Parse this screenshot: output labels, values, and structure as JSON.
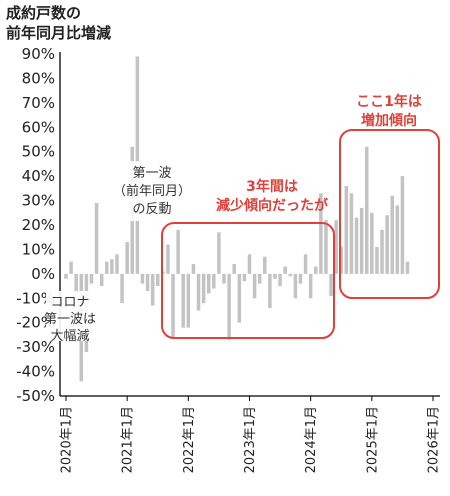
{
  "chart_data": {
    "type": "bar",
    "title_lines": [
      "成約戸数の",
      "前年同月比増減"
    ],
    "x_tick_labels": [
      "2020年1月",
      "2021年1月",
      "2022年1月",
      "2023年1月",
      "2024年1月",
      "2025年1月",
      "2026年1月"
    ],
    "y_tick_labels": [
      "-50%",
      "-40%",
      "-30%",
      "-20%",
      "-10%",
      "0%",
      "10%",
      "20%",
      "30%",
      "40%",
      "50%",
      "60%",
      "70%",
      "80%",
      "90%"
    ],
    "ylim": [
      -50,
      90
    ],
    "y_unit": "%",
    "grid": false,
    "colors": {
      "bar": "#c3c3c3",
      "axis": "#000000",
      "highlight": "#e0403a",
      "text": "#222222"
    },
    "series": [
      {
        "months": [
          "2020-01",
          "2020-02",
          "2020-03",
          "2020-04",
          "2020-05",
          "2020-06",
          "2020-07",
          "2020-08",
          "2020-09",
          "2020-10",
          "2020-11",
          "2020-12",
          "2021-01",
          "2021-02",
          "2021-03",
          "2021-04",
          "2021-05",
          "2021-06",
          "2021-07",
          "2021-08",
          "2021-09",
          "2021-10",
          "2021-11",
          "2021-12",
          "2022-01",
          "2022-02",
          "2022-03",
          "2022-04",
          "2022-05",
          "2022-06",
          "2022-07",
          "2022-08",
          "2022-09",
          "2022-10",
          "2022-11",
          "2022-12",
          "2023-01",
          "2023-02",
          "2023-03",
          "2023-04",
          "2023-05",
          "2023-06",
          "2023-07",
          "2023-08",
          "2023-09",
          "2023-10",
          "2023-11",
          "2023-12",
          "2024-01",
          "2024-02",
          "2024-03",
          "2024-04",
          "2024-05",
          "2024-06",
          "2024-07",
          "2024-08",
          "2024-09",
          "2024-10",
          "2024-11",
          "2024-12",
          "2025-01",
          "2025-02",
          "2025-03",
          "2025-04",
          "2025-05",
          "2025-06",
          "2025-07",
          "2025-08",
          "2025-09",
          "2025-10",
          "2025-11",
          "2025-12",
          "2026-01"
        ],
        "values": [
          -2,
          5,
          -8,
          -44,
          -32,
          -4,
          29,
          -5,
          5,
          6,
          8,
          -12,
          13,
          52,
          89,
          -4,
          -7,
          -13,
          -5,
          1,
          12,
          -26,
          18,
          -22,
          -22,
          4,
          -15,
          -12,
          -8,
          -6,
          17,
          -4,
          -27,
          4,
          -20,
          -3,
          8,
          -10,
          -4,
          7,
          -14,
          -2,
          -5,
          3,
          -1,
          -10,
          -4,
          8,
          -10,
          3,
          33,
          22,
          -9,
          22,
          11,
          36,
          33,
          23,
          27,
          52,
          25,
          11,
          18,
          24,
          32,
          28,
          40,
          5,
          0,
          0,
          0,
          0,
          0
        ]
      }
    ],
    "annotations": [
      {
        "id": "covid",
        "lines": [
          "コロナ",
          "第一波は",
          "大幅減"
        ]
      },
      {
        "id": "rebound",
        "lines": [
          "第一波",
          "（前年同月）",
          "の反動"
        ]
      },
      {
        "id": "decline",
        "lines": [
          "3年間は",
          "減少傾向だったが"
        ],
        "boxed": true
      },
      {
        "id": "increase",
        "lines": [
          "ここ1年は",
          "増加傾向"
        ],
        "boxed": true
      }
    ]
  }
}
